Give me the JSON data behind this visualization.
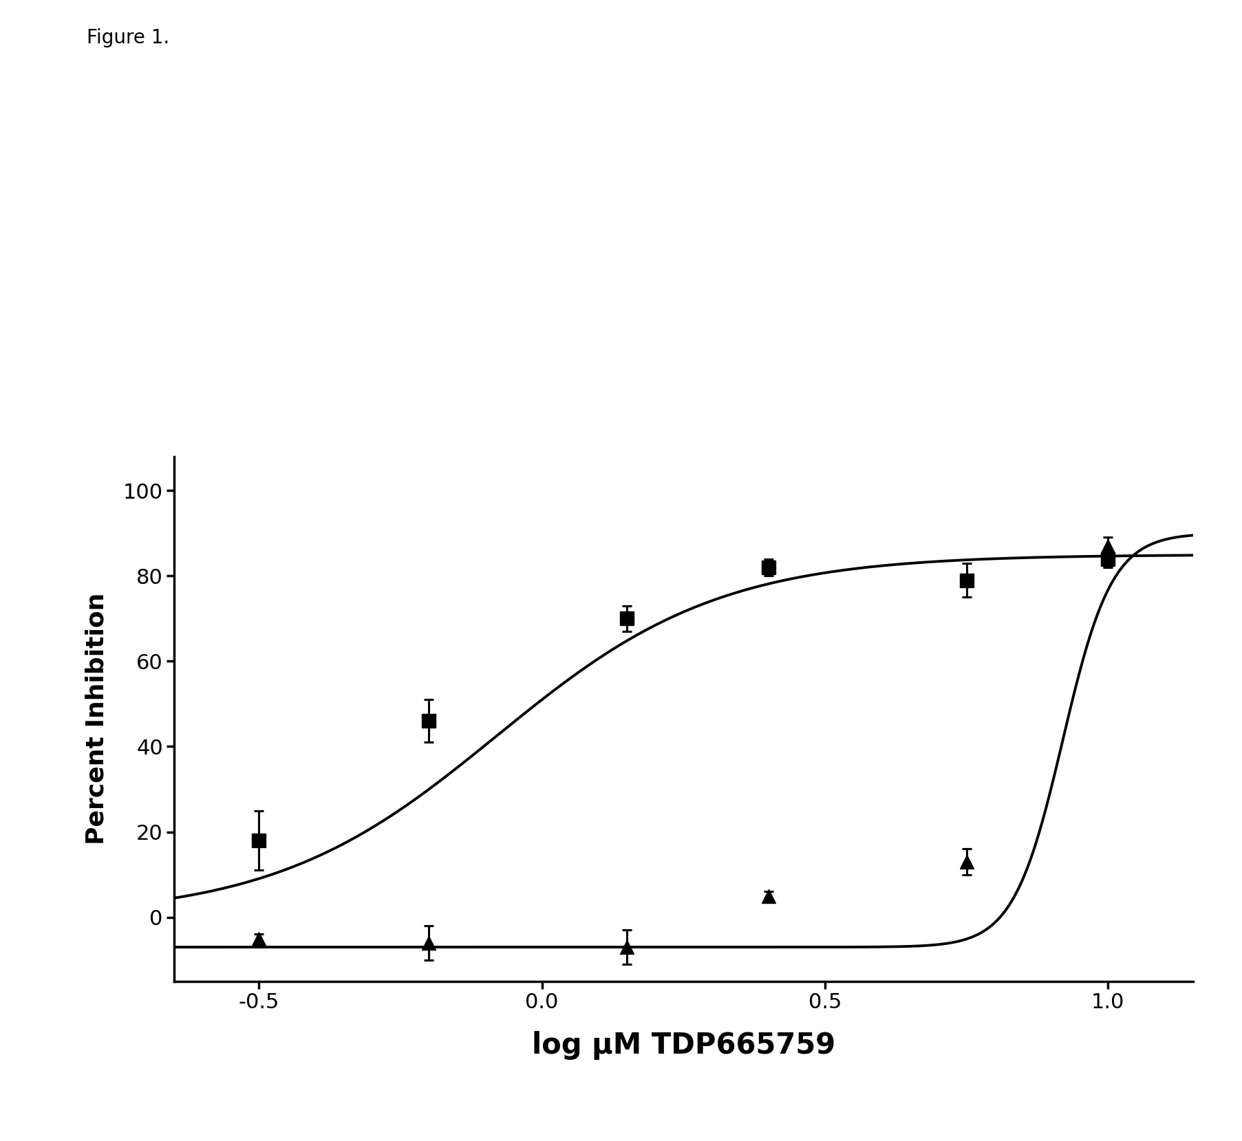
{
  "figure_label": "Figure 1.",
  "xlabel": "log μM TDP665759",
  "ylabel": "Percent Inhibition",
  "xlim": [
    -0.65,
    1.15
  ],
  "ylim": [
    -15,
    108
  ],
  "xticks": [
    -0.5,
    0.0,
    0.5,
    1.0
  ],
  "yticks": [
    0,
    20,
    40,
    60,
    80,
    100
  ],
  "square_x": [
    -0.5,
    -0.2,
    0.15,
    0.4,
    0.75,
    1.0
  ],
  "square_y": [
    18,
    46,
    70,
    82,
    79,
    84
  ],
  "square_yerr": [
    7,
    5,
    3,
    2,
    4,
    2
  ],
  "triangle_x": [
    -0.5,
    -0.2,
    0.15,
    0.4,
    0.75,
    1.0
  ],
  "triangle_y": [
    -5,
    -6,
    -7,
    5,
    13,
    87
  ],
  "triangle_yerr": [
    1,
    4,
    4,
    1,
    3,
    2
  ],
  "line_color": "#000000",
  "marker_color": "#000000",
  "background_color": "#ffffff",
  "marker_size": 15,
  "line_width": 2.8,
  "xlabel_fontsize": 30,
  "ylabel_fontsize": 26,
  "tick_fontsize": 22,
  "figure_label_fontsize": 20,
  "sq_fit_params": [
    0,
    85,
    -0.08,
    2.2
  ],
  "tri_fit_params": [
    -7,
    90,
    0.92,
    10
  ]
}
